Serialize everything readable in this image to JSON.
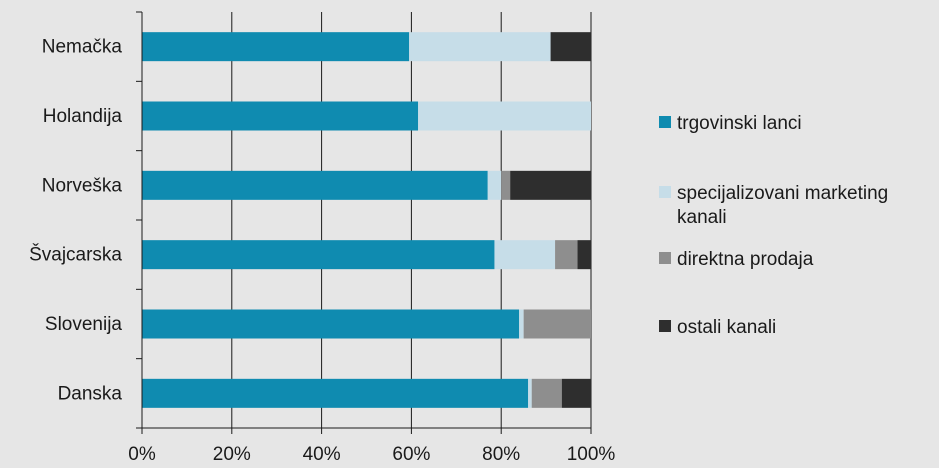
{
  "chart_data": {
    "type": "bar",
    "orientation": "horizontal",
    "stacked": "percent",
    "categories": [
      "Nemačka",
      "Holandija",
      "Norveška",
      "Švajcarska",
      "Slovenija",
      "Danska"
    ],
    "series": [
      {
        "name": "trgovinski lanci",
        "color": "#0f8bb0",
        "values": [
          59.5,
          61.5,
          77,
          78.5,
          84,
          86
        ]
      },
      {
        "name": "specijalizovani marketing kanali",
        "color": "#c6dde8",
        "values": [
          31.5,
          38.5,
          3,
          13.5,
          1,
          0.8
        ]
      },
      {
        "name": "direktna prodaja",
        "color": "#8e8e8e",
        "values": [
          0,
          0,
          2,
          5,
          15,
          6.7
        ]
      },
      {
        "name": "ostali kanali",
        "color": "#2e2e2e",
        "values": [
          9,
          0,
          18,
          3,
          0,
          6.5
        ]
      }
    ],
    "xlim": [
      0,
      100
    ],
    "xticks": [
      "0%",
      "20%",
      "40%",
      "60%",
      "80%",
      "100%"
    ],
    "grid": {
      "vertical": true,
      "horizontal": false
    },
    "legend": {
      "position": "right"
    },
    "title": "",
    "xlabel": "",
    "ylabel": ""
  }
}
